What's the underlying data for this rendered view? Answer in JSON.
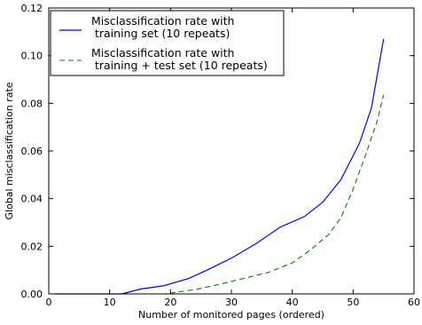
{
  "chart_data": {
    "type": "line",
    "xlabel": "Number of monitored pages (ordered)",
    "ylabel": "Global misclassification rate",
    "xlim": [
      0,
      60
    ],
    "ylim": [
      0,
      0.12
    ],
    "xticks": [
      0,
      10,
      20,
      30,
      40,
      50,
      60
    ],
    "yticks": [
      0.0,
      0.02,
      0.04,
      0.06,
      0.08,
      0.1,
      0.12
    ],
    "xtick_labels": [
      "0",
      "10",
      "20",
      "30",
      "40",
      "50",
      "60"
    ],
    "ytick_labels": [
      "0.00",
      "0.02",
      "0.04",
      "0.06",
      "0.08",
      "0.10",
      "0.12"
    ],
    "grid": false,
    "legend_position": "top-left",
    "series": [
      {
        "name": "Misclassification rate with\n training set (10 repeats)",
        "color": "#0000ff",
        "style": "solid",
        "x": [
          1,
          12,
          15,
          19,
          23,
          26,
          30,
          34,
          38,
          42,
          45,
          48,
          51,
          53,
          55
        ],
        "y": [
          0,
          0,
          0.002,
          0.0035,
          0.0065,
          0.01,
          0.015,
          0.021,
          0.028,
          0.0325,
          0.0385,
          0.048,
          0.063,
          0.078,
          0.107
        ]
      },
      {
        "name": "Misclassification rate with\n training + test set (10 repeats)",
        "color": "#008000",
        "style": "dashed",
        "x": [
          1,
          19,
          24,
          28,
          32,
          36,
          40,
          43,
          46,
          48,
          50,
          52,
          54,
          55
        ],
        "y": [
          0,
          0,
          0.0018,
          0.004,
          0.0065,
          0.009,
          0.013,
          0.0185,
          0.025,
          0.032,
          0.044,
          0.058,
          0.073,
          0.0835
        ]
      }
    ]
  }
}
